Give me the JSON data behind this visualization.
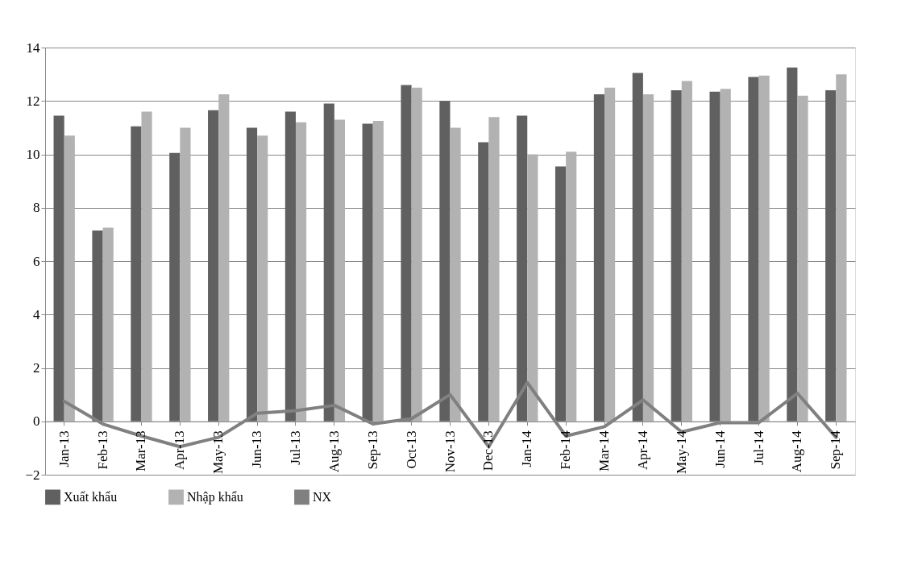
{
  "chart_data": {
    "type": "bar",
    "categories": [
      "Jan-13",
      "Feb-13",
      "Mar-13",
      "Apr-13",
      "May-13",
      "Jun-13",
      "Jul-13",
      "Aug-13",
      "Sep-13",
      "Oct-13",
      "Nov-13",
      "Dec-13",
      "Jan-14",
      "Feb-14",
      "Mar-14",
      "Apr-14",
      "May-14",
      "Jun-14",
      "Jul-14",
      "Aug-14",
      "Sep-14"
    ],
    "series": [
      {
        "name": "Xuất khẩu",
        "color": "#606060",
        "values": [
          11.45,
          7.15,
          11.05,
          10.05,
          11.65,
          11.0,
          11.6,
          11.9,
          11.15,
          12.6,
          12.0,
          10.45,
          11.45,
          9.55,
          12.25,
          13.05,
          12.4,
          12.35,
          12.9,
          13.25,
          12.4
        ]
      },
      {
        "name": "Nhập khẩu",
        "color": "#b2b2b2",
        "values": [
          10.7,
          7.25,
          11.6,
          11.0,
          12.25,
          10.7,
          11.2,
          11.3,
          11.25,
          12.5,
          11.0,
          11.4,
          10.0,
          10.1,
          12.5,
          12.25,
          12.75,
          12.45,
          12.95,
          12.2,
          13.0
        ]
      },
      {
        "name": "NX",
        "type": "line",
        "color": "#808080",
        "values": [
          0.75,
          -0.1,
          -0.55,
          -0.95,
          -0.6,
          0.3,
          0.4,
          0.6,
          -0.1,
          0.1,
          1.0,
          -0.95,
          1.45,
          -0.55,
          -0.2,
          0.8,
          -0.4,
          -0.05,
          -0.05,
          1.05,
          -0.6
        ]
      }
    ],
    "ylim": [
      -2,
      14
    ],
    "yticks": [
      -2,
      0,
      2,
      4,
      6,
      8,
      10,
      12,
      14
    ],
    "grid": "y",
    "legend": "bottom"
  }
}
